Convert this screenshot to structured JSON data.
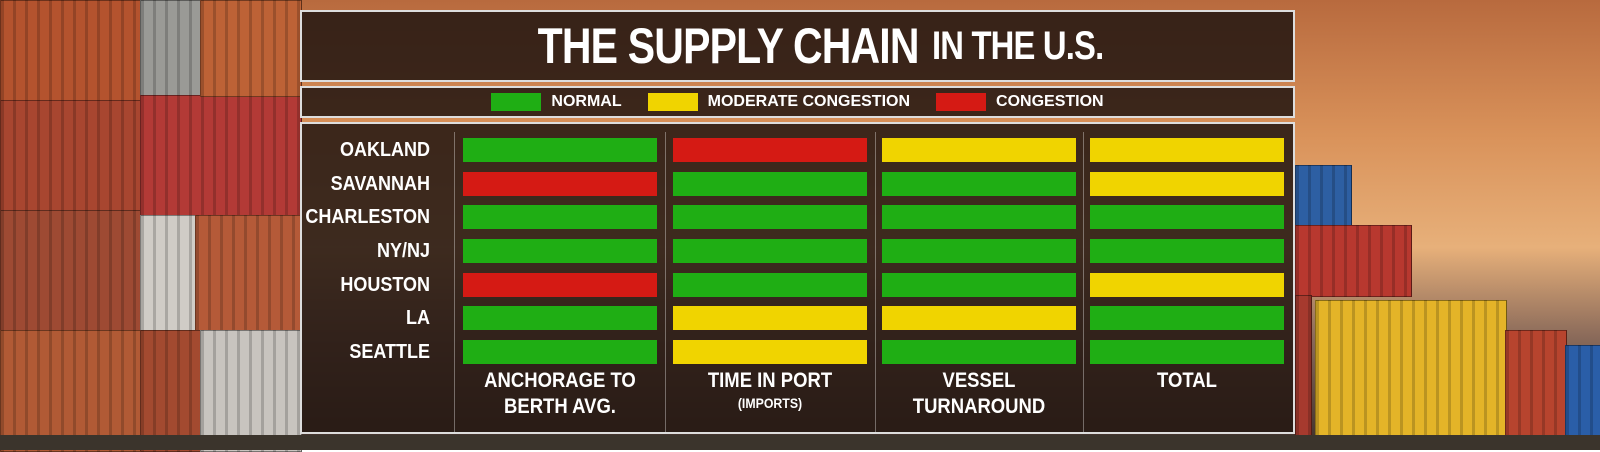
{
  "header": {
    "title_main": "THE SUPPLY CHAIN",
    "title_small": "IN THE U.S."
  },
  "legend": [
    {
      "label": "NORMAL",
      "color": "#1fae14"
    },
    {
      "label": "MODERATE CONGESTION",
      "color": "#f0d400"
    },
    {
      "label": "CONGESTION",
      "color": "#d51a14"
    }
  ],
  "columns": [
    {
      "line1": "ANCHORAGE TO",
      "line2": "BERTH AVG."
    },
    {
      "line1": "TIME IN PORT",
      "line2": "(IMPORTS)"
    },
    {
      "line1": "VESSEL",
      "line2": "TURNAROUND"
    },
    {
      "line1": "TOTAL"
    }
  ],
  "rows": [
    {
      "port": "OAKLAND",
      "status": [
        0,
        2,
        1,
        1
      ]
    },
    {
      "port": "SAVANNAH",
      "status": [
        2,
        0,
        0,
        1
      ]
    },
    {
      "port": "CHARLESTON",
      "status": [
        0,
        0,
        0,
        0
      ]
    },
    {
      "port": "NY/NJ",
      "status": [
        0,
        0,
        0,
        0
      ]
    },
    {
      "port": "HOUSTON",
      "status": [
        2,
        0,
        0,
        1
      ]
    },
    {
      "port": "LA",
      "status": [
        0,
        1,
        1,
        0
      ]
    },
    {
      "port": "SEATTLE",
      "status": [
        0,
        1,
        0,
        0
      ]
    }
  ]
}
